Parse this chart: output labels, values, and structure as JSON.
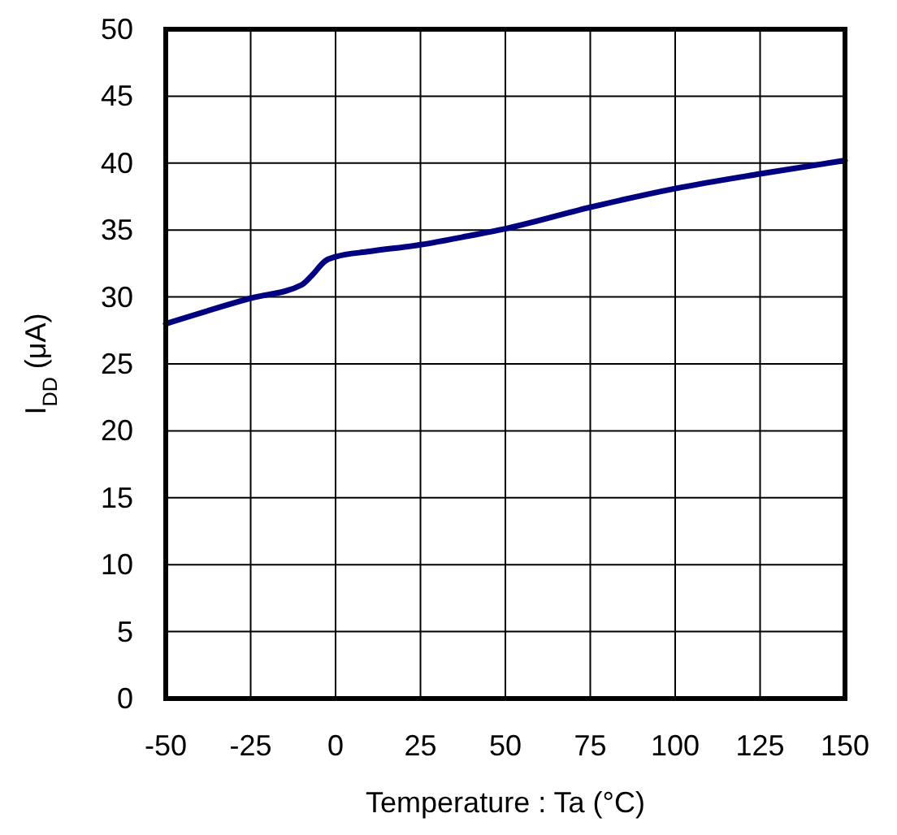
{
  "chart_data": {
    "type": "line",
    "xlabel": "Temperature : Ta (°C)",
    "ylabel": "I$_{DD}$ (μA)",
    "x": [
      -50,
      -25,
      -10,
      -7,
      -3,
      0,
      10,
      25,
      40,
      50,
      75,
      100,
      125,
      150
    ],
    "series": [
      {
        "color": "#000080",
        "values": [
          28.0,
          29.9,
          30.9,
          31.6,
          32.7,
          33.0,
          33.4,
          33.9,
          34.6,
          35.1,
          36.7,
          38.1,
          39.2,
          40.2
        ]
      }
    ],
    "xlim": [
      -50,
      150
    ],
    "xticks": [
      -50,
      -25,
      0,
      25,
      50,
      75,
      100,
      125,
      150
    ],
    "ylim": [
      0,
      50
    ],
    "yticks": [
      0,
      5,
      10,
      15,
      20,
      25,
      30,
      35,
      40,
      45,
      50
    ],
    "grid": true
  }
}
